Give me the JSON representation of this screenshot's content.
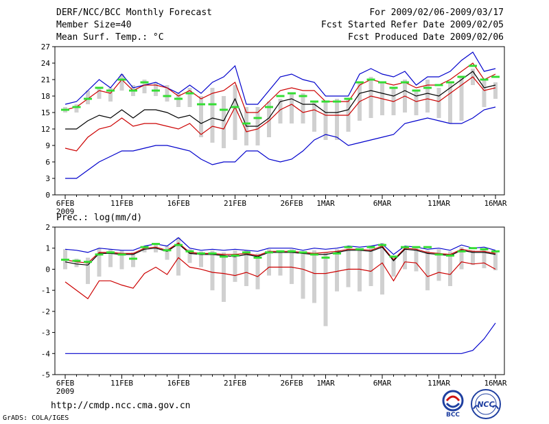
{
  "header": {
    "title": "DERF/NCC/BCC Monthly Forecast",
    "member_size": "Member Size=40",
    "variable": "Mean Surf. Temp.: °C",
    "period": "For 2009/02/06-2009/03/17",
    "start_ref": "Fcst Started Refer Date 2009/02/05",
    "produced": "Fcst Produced Date 2009/02/06"
  },
  "footer": {
    "url": "http://cmdp.ncc.cma.gov.cn",
    "credit": "GrADS: COLA/IGES",
    "logo_left_text": "BCC",
    "logo_right_text": "NCC"
  },
  "colors": {
    "max": "#0000cc",
    "min": "#0000cc",
    "upper": "#cc0000",
    "lower": "#cc0000",
    "mean": "#000000",
    "box": "#d0d0d0",
    "clim": "#33dd33"
  },
  "chart_data": [
    {
      "type": "line",
      "title": "Mean Surf. Temp.: °C",
      "x_tick_labels": [
        "6FEB",
        "11FEB",
        "16FEB",
        "21FEB",
        "26FEB",
        "1MAR",
        "6MAR",
        "11MAR",
        "16MAR"
      ],
      "x_tick_days": [
        0,
        5,
        10,
        15,
        20,
        23,
        28,
        33,
        38
      ],
      "year_label": "2009",
      "ylim": [
        0,
        27
      ],
      "y_ticks": [
        0,
        3,
        6,
        9,
        12,
        15,
        18,
        21,
        24,
        27
      ],
      "series": [
        {
          "name": "max",
          "values": [
            16.5,
            17,
            19,
            21,
            19.5,
            22,
            19.5,
            20,
            20.5,
            19.5,
            18.5,
            20,
            18.5,
            20.5,
            21.5,
            23.5,
            16.5,
            16.5,
            19,
            21.5,
            22,
            21,
            20.5,
            18,
            18,
            18,
            22,
            23,
            22,
            21.5,
            22.5,
            20,
            21.5,
            21.5,
            22.5,
            24.5,
            26,
            22.5,
            23
          ]
        },
        {
          "name": "upper",
          "values": [
            15.5,
            16,
            17.5,
            19,
            18.5,
            21,
            19,
            20,
            20,
            19.5,
            18,
            19,
            17.5,
            18.5,
            19,
            20.5,
            15,
            15,
            17,
            19,
            19.5,
            19,
            19,
            17,
            17,
            17,
            20,
            21,
            20.5,
            20,
            20.5,
            19.5,
            20,
            20,
            21,
            22.5,
            24,
            21,
            22
          ]
        },
        {
          "name": "mean",
          "values": [
            12,
            12,
            13.5,
            14.5,
            14,
            15.5,
            14,
            15.5,
            15.5,
            15,
            14,
            14.5,
            13,
            14,
            13.5,
            17.5,
            12.5,
            12.5,
            14,
            17,
            17.5,
            16.5,
            16.5,
            15,
            15,
            15.5,
            18.5,
            19,
            18.5,
            18,
            19,
            18,
            18.5,
            18,
            19.5,
            21,
            22.5,
            19.5,
            20
          ]
        },
        {
          "name": "lower",
          "values": [
            8.5,
            8,
            10.5,
            12,
            12.5,
            14,
            12.5,
            13,
            13,
            12.5,
            12,
            13,
            11,
            12.5,
            12,
            16,
            11.5,
            12,
            13.5,
            15.5,
            16.5,
            15,
            15.5,
            14.5,
            14.5,
            14.5,
            17,
            18,
            17.5,
            17,
            18,
            17,
            17.5,
            17,
            18.5,
            20,
            21.5,
            19,
            19.5
          ]
        },
        {
          "name": "min",
          "values": [
            3,
            3,
            4.5,
            6,
            7,
            8,
            8,
            8.5,
            9,
            9,
            8.5,
            8,
            6.5,
            5.5,
            6,
            6,
            8,
            8,
            6.5,
            6,
            6.5,
            8,
            10,
            11,
            10.5,
            9,
            9.5,
            10,
            10.5,
            11,
            13,
            13.5,
            14,
            13.5,
            13,
            13,
            14,
            15.5,
            16
          ]
        },
        {
          "name": "box_low",
          "values": [
            15,
            15,
            16.5,
            17.5,
            17,
            19,
            18,
            18.5,
            18,
            17,
            16,
            16,
            10.5,
            9.5,
            8.5,
            10,
            9,
            9,
            10.5,
            13,
            13,
            13,
            11.5,
            10,
            10,
            11.5,
            13.5,
            14,
            14.5,
            14.5,
            15,
            14.5,
            15,
            14,
            13,
            13.5,
            20,
            16,
            17.5
          ]
        },
        {
          "name": "box_high",
          "values": [
            16,
            16.5,
            19,
            19.5,
            19.5,
            22,
            20,
            21,
            20.5,
            20,
            18.5,
            19.5,
            18,
            19.5,
            18,
            20,
            16,
            16,
            17,
            17.5,
            18.5,
            18.5,
            17,
            17,
            17.5,
            17.5,
            20.5,
            21.5,
            20.5,
            19.5,
            21,
            19,
            21,
            19.5,
            20.5,
            21.5,
            23,
            21,
            20.5
          ]
        },
        {
          "name": "clim",
          "values": [
            15.5,
            16,
            17.5,
            19.5,
            19,
            21,
            19,
            20.5,
            19,
            18,
            17.5,
            18.5,
            16.5,
            16.5,
            15.5,
            16,
            13,
            14,
            16,
            18,
            18.5,
            18,
            17,
            17,
            17,
            17.5,
            20.5,
            21,
            20.5,
            19.5,
            20.5,
            19,
            19.5,
            20,
            20.5,
            21.5,
            23.5,
            21,
            21.5
          ]
        }
      ]
    },
    {
      "type": "line",
      "title": "Prec.: log(mm/d)",
      "x_tick_labels": [
        "6FEB",
        "11FEB",
        "16FEB",
        "21FEB",
        "26FEB",
        "1MAR",
        "6MAR",
        "11MAR",
        "16MAR"
      ],
      "x_tick_days": [
        0,
        5,
        10,
        15,
        20,
        23,
        28,
        33,
        38
      ],
      "year_label": "2009",
      "ylim": [
        -5,
        2
      ],
      "y_ticks": [
        -5,
        -4,
        -3,
        -2,
        -1,
        0,
        1,
        2
      ],
      "series": [
        {
          "name": "max",
          "values": [
            0.95,
            0.9,
            0.8,
            1,
            0.95,
            0.9,
            0.9,
            1.1,
            1.2,
            1.1,
            1.5,
            1,
            0.9,
            0.95,
            0.9,
            0.95,
            0.9,
            0.85,
            1,
            1,
            1,
            0.9,
            1,
            0.95,
            1,
            1.1,
            1.05,
            1.1,
            1.2,
            0.7,
            1.1,
            1.05,
            0.95,
            1,
            0.9,
            1.15,
            1,
            1.05,
            0.9
          ]
        },
        {
          "name": "upper",
          "values": [
            0.45,
            0.35,
            0.3,
            0.8,
            0.8,
            0.75,
            0.75,
            1,
            1.05,
            0.9,
            1.25,
            0.8,
            0.75,
            0.75,
            0.7,
            0.7,
            0.75,
            0.65,
            0.85,
            0.85,
            0.85,
            0.8,
            0.75,
            0.8,
            0.85,
            0.95,
            0.95,
            0.9,
            1.1,
            0.45,
            1.0,
            0.95,
            0.8,
            0.75,
            0.7,
            0.95,
            0.85,
            0.85,
            0.75
          ]
        },
        {
          "name": "mean",
          "values": [
            0.35,
            0.25,
            0.2,
            0.75,
            0.75,
            0.7,
            0.7,
            0.95,
            1.0,
            0.85,
            1.2,
            0.75,
            0.7,
            0.7,
            0.65,
            0.6,
            0.7,
            0.6,
            0.8,
            0.8,
            0.8,
            0.75,
            0.7,
            0.7,
            0.8,
            0.9,
            0.9,
            0.85,
            1.05,
            0.4,
            0.95,
            0.9,
            0.75,
            0.7,
            0.65,
            0.9,
            0.8,
            0.8,
            0.7
          ]
        },
        {
          "name": "lower",
          "values": [
            -0.6,
            -1,
            -1.4,
            -0.55,
            -0.55,
            -0.75,
            -0.9,
            -0.2,
            0.1,
            -0.25,
            0.55,
            0.1,
            0.0,
            -0.15,
            -0.2,
            -0.3,
            -0.15,
            -0.35,
            0.1,
            0.1,
            0.1,
            0.0,
            -0.2,
            -0.2,
            -0.1,
            0.0,
            0.0,
            -0.1,
            0.3,
            -0.55,
            0.35,
            0.3,
            -0.35,
            -0.15,
            -0.25,
            0.35,
            0.25,
            0.3,
            0.0
          ]
        },
        {
          "name": "min",
          "values": [
            -4,
            -4,
            -4,
            -4,
            -4,
            -4,
            -4,
            -4,
            -4,
            -4,
            -4,
            -4,
            -4,
            -4,
            -4,
            -4,
            -4,
            -4,
            -4,
            -4,
            -4,
            -4,
            -4,
            -4,
            -4,
            -4,
            -4,
            -4,
            -4,
            -4,
            -4,
            -4,
            -4,
            -4,
            -4,
            -4,
            -3.85,
            -3.3,
            -2.55
          ]
        },
        {
          "name": "box_low",
          "values": [
            0.0,
            0.1,
            -0.7,
            -0.35,
            0.1,
            0.0,
            0.1,
            0.8,
            0.8,
            0.45,
            -0.3,
            0.3,
            0.1,
            -1,
            -1.55,
            -0.6,
            -0.8,
            -0.95,
            -0.3,
            -0.3,
            -0.7,
            -1.4,
            -1.6,
            -2.7,
            -1.05,
            -0.85,
            -1.05,
            -0.8,
            -1.2,
            -0.35,
            0.0,
            -0.1,
            -1,
            -0.55,
            -0.8,
            0.0,
            0.2,
            0.05,
            -0.05
          ]
        },
        {
          "name": "box_high",
          "values": [
            0.95,
            0.5,
            0.55,
            1.0,
            0.95,
            0.9,
            0.8,
            1.1,
            1.25,
            1.1,
            1.5,
            0.95,
            0.85,
            0.9,
            0.8,
            0.9,
            0.9,
            0.75,
            0.95,
            0.9,
            0.95,
            0.85,
            0.9,
            0.8,
            0.95,
            1.05,
            1.0,
            1.05,
            1.25,
            0.6,
            1.1,
            1.05,
            0.9,
            0.95,
            0.85,
            1.05,
            0.9,
            1.0,
            0.85
          ]
        },
        {
          "name": "clim",
          "values": [
            0.45,
            0.4,
            0.35,
            0.7,
            0.8,
            0.7,
            0.5,
            1.05,
            1.2,
            0.9,
            1.15,
            0.85,
            0.75,
            0.75,
            0.6,
            0.65,
            0.8,
            0.55,
            0.8,
            0.85,
            0.85,
            0.8,
            0.7,
            0.55,
            0.75,
            1.05,
            0.95,
            1.05,
            1.15,
            0.6,
            1.05,
            1.05,
            1.05,
            0.7,
            0.65,
            0.85,
            1.0,
            0.95,
            0.85
          ]
        }
      ]
    }
  ]
}
